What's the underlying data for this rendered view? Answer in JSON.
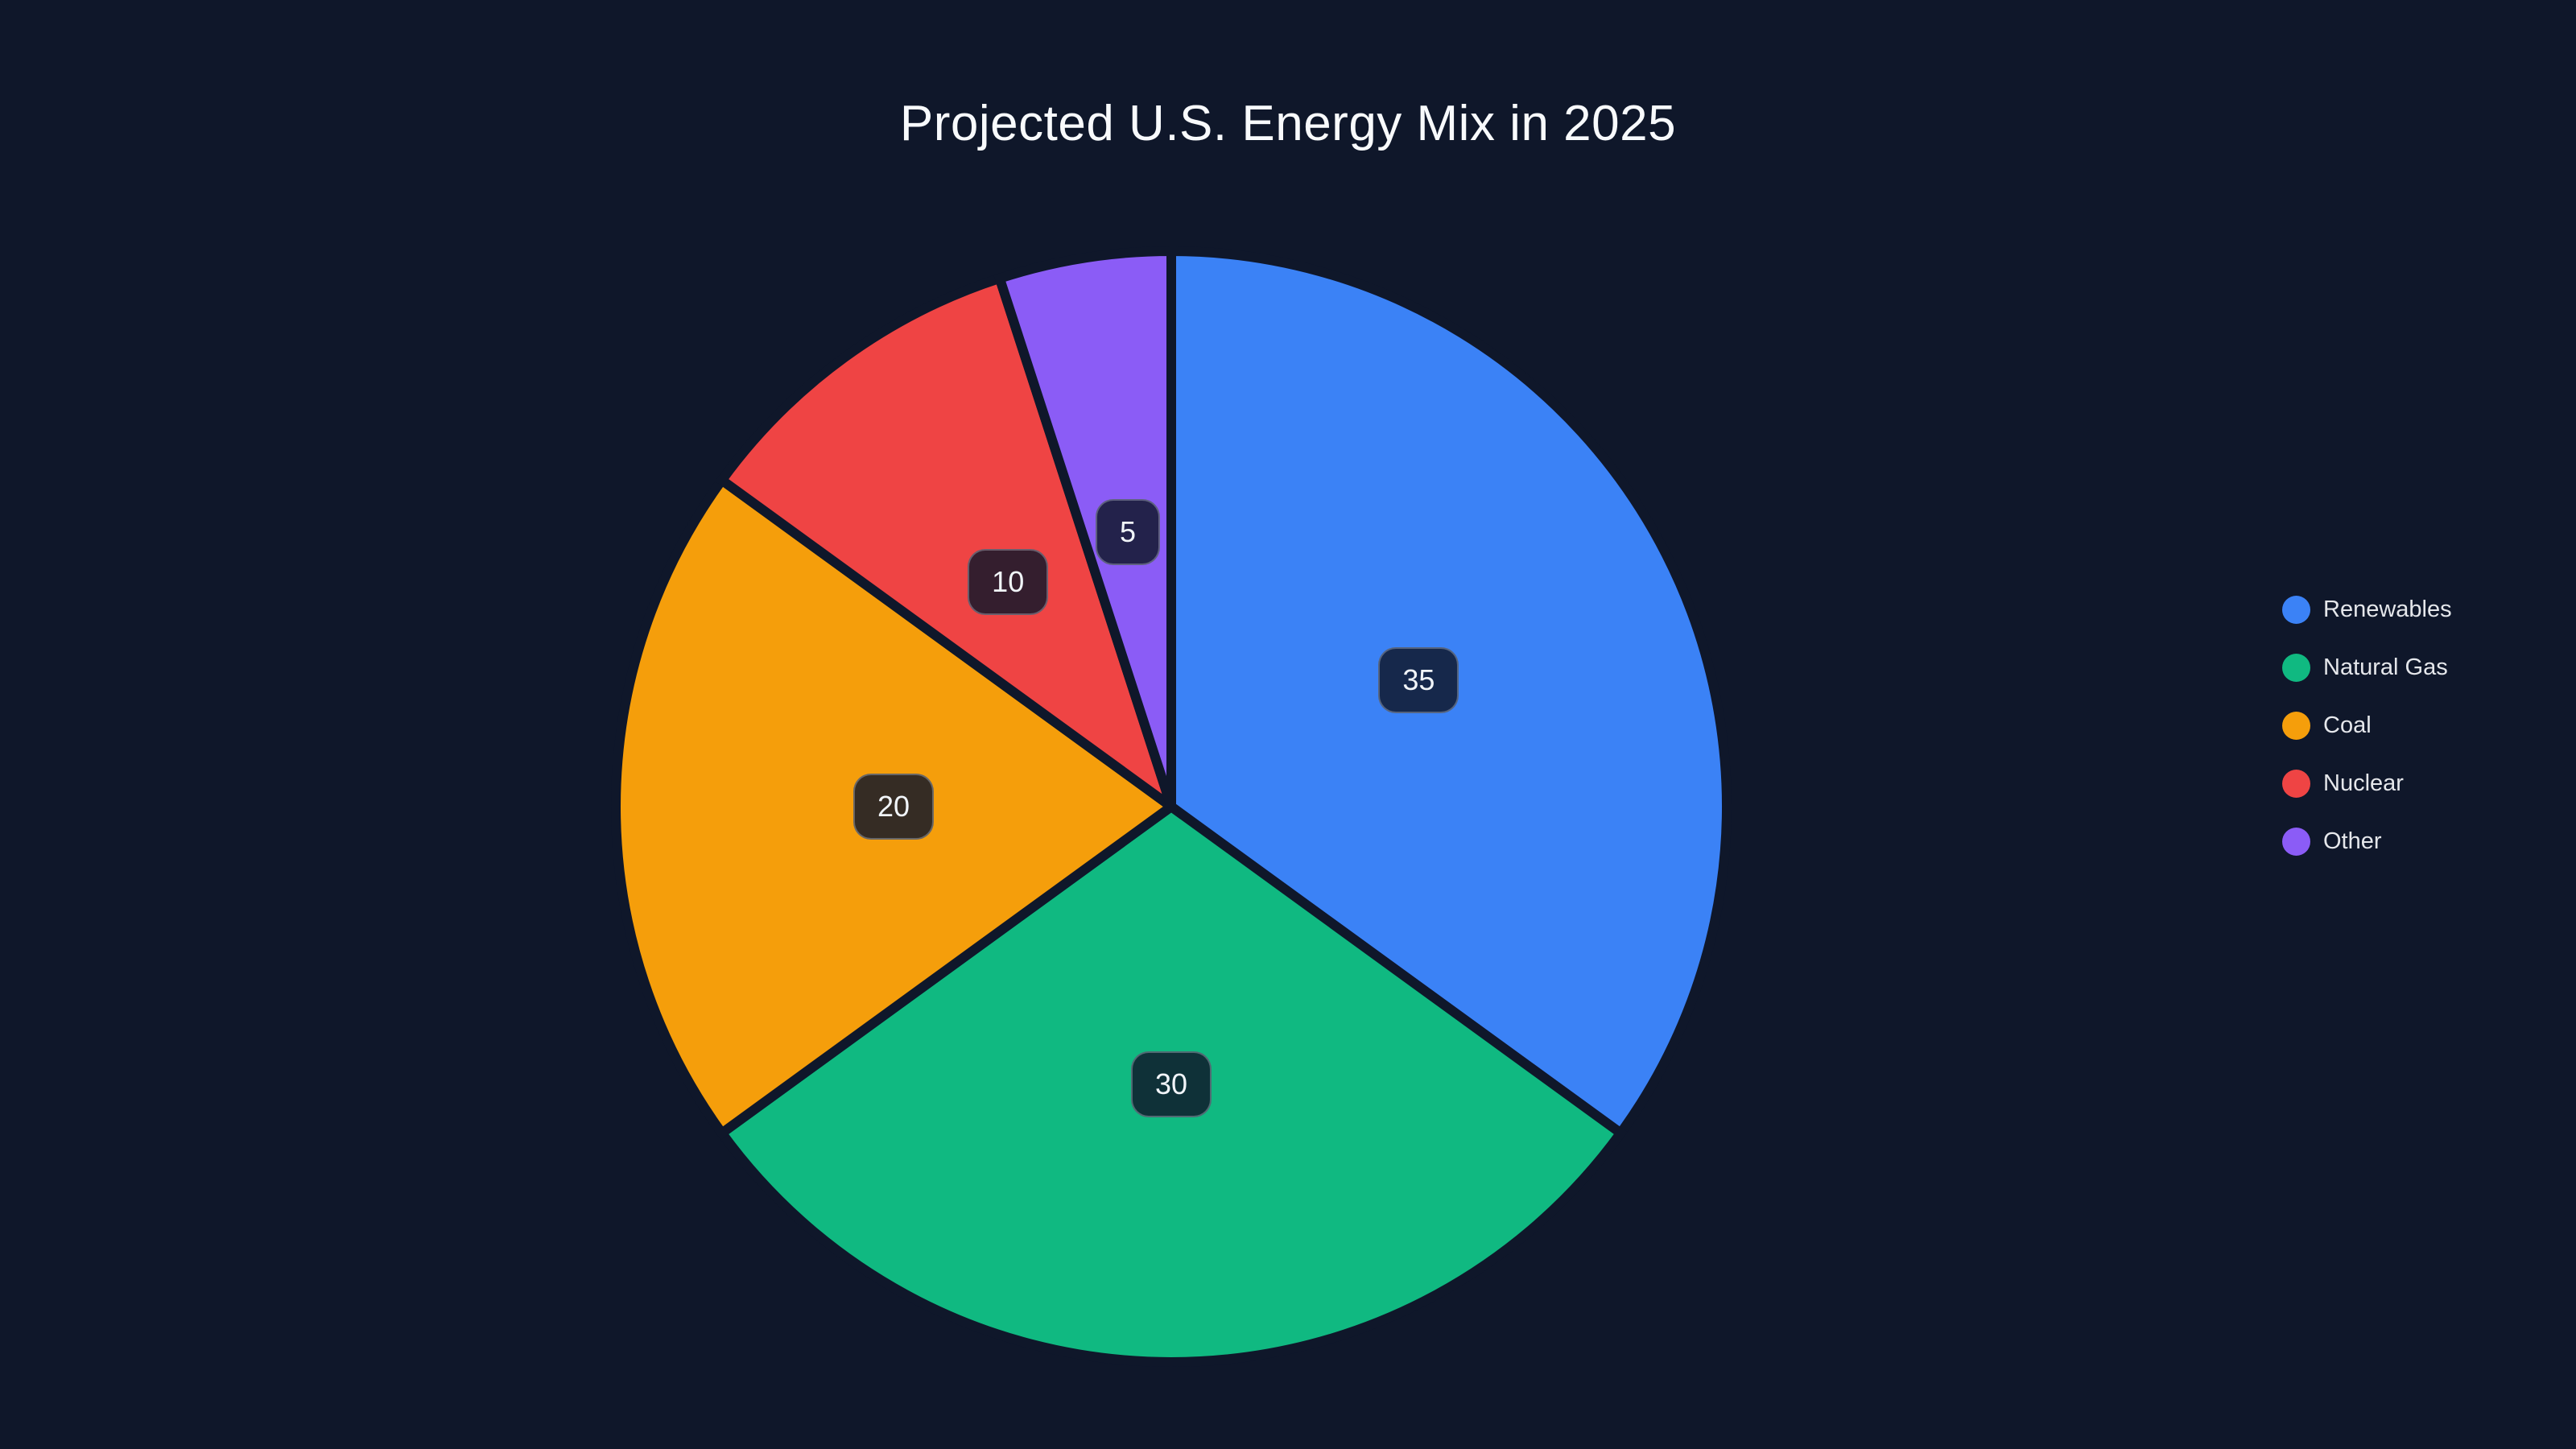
{
  "chart_data": {
    "type": "pie",
    "title": "Projected U.S. Energy Mix in 2025",
    "categories": [
      "Renewables",
      "Natural Gas",
      "Coal",
      "Nuclear",
      "Other"
    ],
    "values": [
      35,
      30,
      20,
      10,
      5
    ],
    "colors": [
      "#3b82f6",
      "#10b981",
      "#f59e0b",
      "#ef4444",
      "#8b5cf6"
    ],
    "data_labels_shown": true,
    "start_angle": "top",
    "direction": "clockwise",
    "legend_position": "right",
    "background": "#0f172a",
    "title_color": "#f8fafc",
    "legend_text_color": "#e5e7eb",
    "label_text_color": "#f1f5f9"
  }
}
